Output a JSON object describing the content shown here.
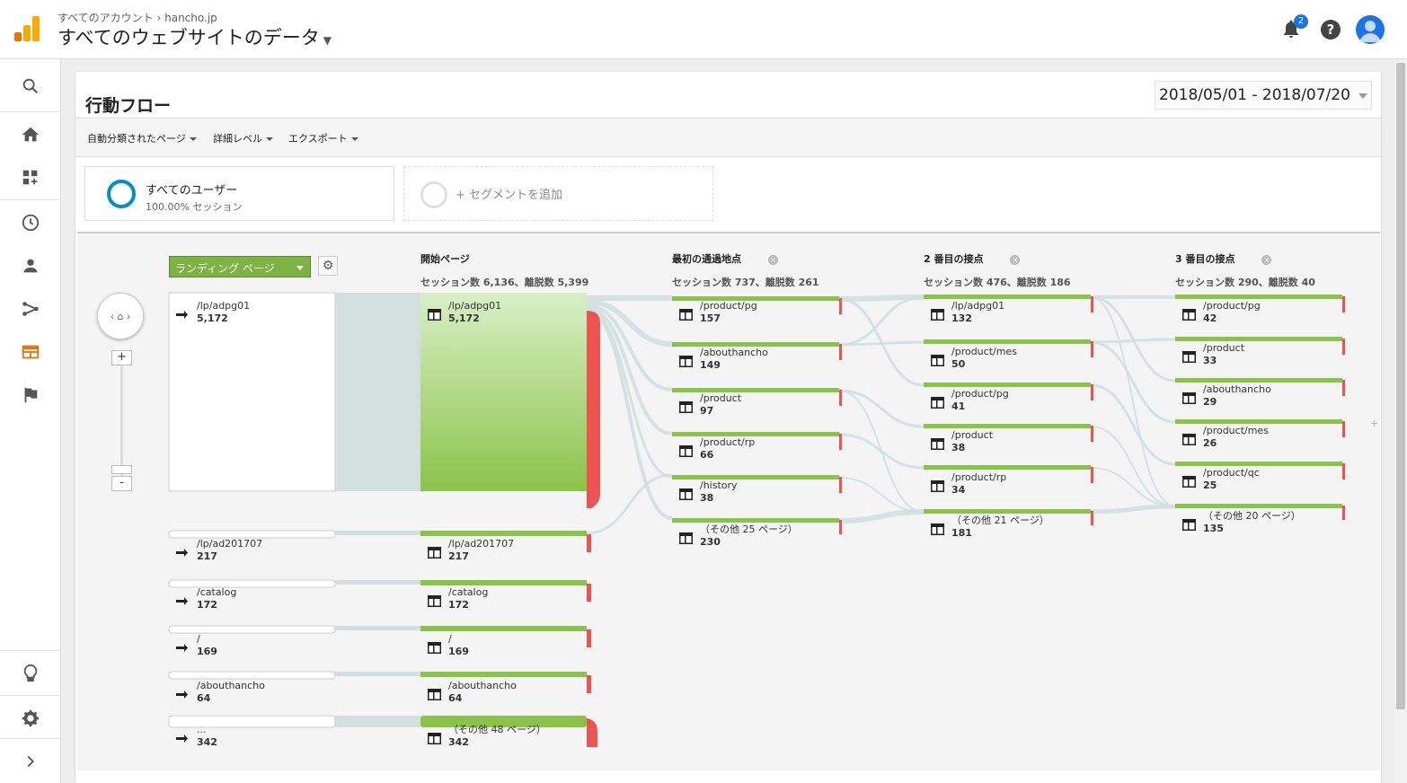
{
  "header": {
    "breadcrumb": "すべてのアカウント › hancho.jp",
    "property_title": "すべてのウェブサイトのデータ",
    "notification_count": "2",
    "help_label": "?"
  },
  "sidebar": {
    "items": [
      {
        "name": "search-icon"
      },
      {
        "name": "home-icon"
      },
      {
        "name": "customization-icon"
      },
      {
        "name": "realtime-icon"
      },
      {
        "name": "audience-icon"
      },
      {
        "name": "acquisition-icon"
      },
      {
        "name": "behavior-icon"
      },
      {
        "name": "conversions-icon"
      },
      {
        "name": "discover-icon"
      },
      {
        "name": "admin-icon"
      },
      {
        "name": "expand-icon"
      }
    ],
    "active_color": "#e8710a"
  },
  "page": {
    "title": "行動フロー",
    "date_range": "2018/05/01 - 2018/07/20"
  },
  "toolbar": {
    "auto_pages": "自動分類されたページ",
    "detail_level": "詳細レベル",
    "export": "エクスポート"
  },
  "segments": {
    "all_users": "すべてのユーザー",
    "all_users_sub": "100.00% セッション",
    "add": "+ セグメントを追加"
  },
  "flow": {
    "dimension": "ランディング ページ",
    "zoom_in": "+",
    "zoom_out": "-",
    "colors": {
      "node": "#8bc34a",
      "drop": "#ef5350",
      "link": "#cfdedf"
    },
    "landing": [
      {
        "label": "/lp/adpg01",
        "count": "5,172"
      },
      {
        "label": "/lp/ad201707",
        "count": "217"
      },
      {
        "label": "/catalog",
        "count": "172"
      },
      {
        "label": "/",
        "count": "169"
      },
      {
        "label": "/abouthancho",
        "count": "64"
      },
      {
        "label": "...",
        "count": "342"
      }
    ],
    "columns": [
      {
        "title": "開始ページ",
        "stats": "セッション数 6,136、離脱数 5,399",
        "nodes": [
          {
            "label": "/lp/adpg01",
            "count": "5,172"
          },
          {
            "label": "/lp/ad201707",
            "count": "217"
          },
          {
            "label": "/catalog",
            "count": "172"
          },
          {
            "label": "/",
            "count": "169"
          },
          {
            "label": "/abouthancho",
            "count": "64"
          },
          {
            "label": "（その他 48 ページ）",
            "count": "342"
          }
        ]
      },
      {
        "title": "最初の通過地点",
        "stats": "セッション数 737、離脱数 261",
        "nodes": [
          {
            "label": "/product/pg",
            "count": "157"
          },
          {
            "label": "/abouthancho",
            "count": "149"
          },
          {
            "label": "/product",
            "count": "97"
          },
          {
            "label": "/product/rp",
            "count": "66"
          },
          {
            "label": "/history",
            "count": "38"
          },
          {
            "label": "（その他 25 ページ）",
            "count": "230"
          }
        ]
      },
      {
        "title": "2 番目の接点",
        "stats": "セッション数 476、離脱数 186",
        "nodes": [
          {
            "label": "/lp/adpg01",
            "count": "132"
          },
          {
            "label": "/product/mes",
            "count": "50"
          },
          {
            "label": "/product/pg",
            "count": "41"
          },
          {
            "label": "/product",
            "count": "38"
          },
          {
            "label": "/product/rp",
            "count": "34"
          },
          {
            "label": "（その他 21 ページ）",
            "count": "181"
          }
        ]
      },
      {
        "title": "3 番目の接点",
        "stats": "セッション数 290、離脱数 40",
        "nodes": [
          {
            "label": "/product/pg",
            "count": "42"
          },
          {
            "label": "/product",
            "count": "33"
          },
          {
            "label": "/abouthancho",
            "count": "29"
          },
          {
            "label": "/product/mes",
            "count": "26"
          },
          {
            "label": "/product/qc",
            "count": "25"
          },
          {
            "label": "（その他 20 ページ）",
            "count": "135"
          }
        ]
      }
    ]
  }
}
